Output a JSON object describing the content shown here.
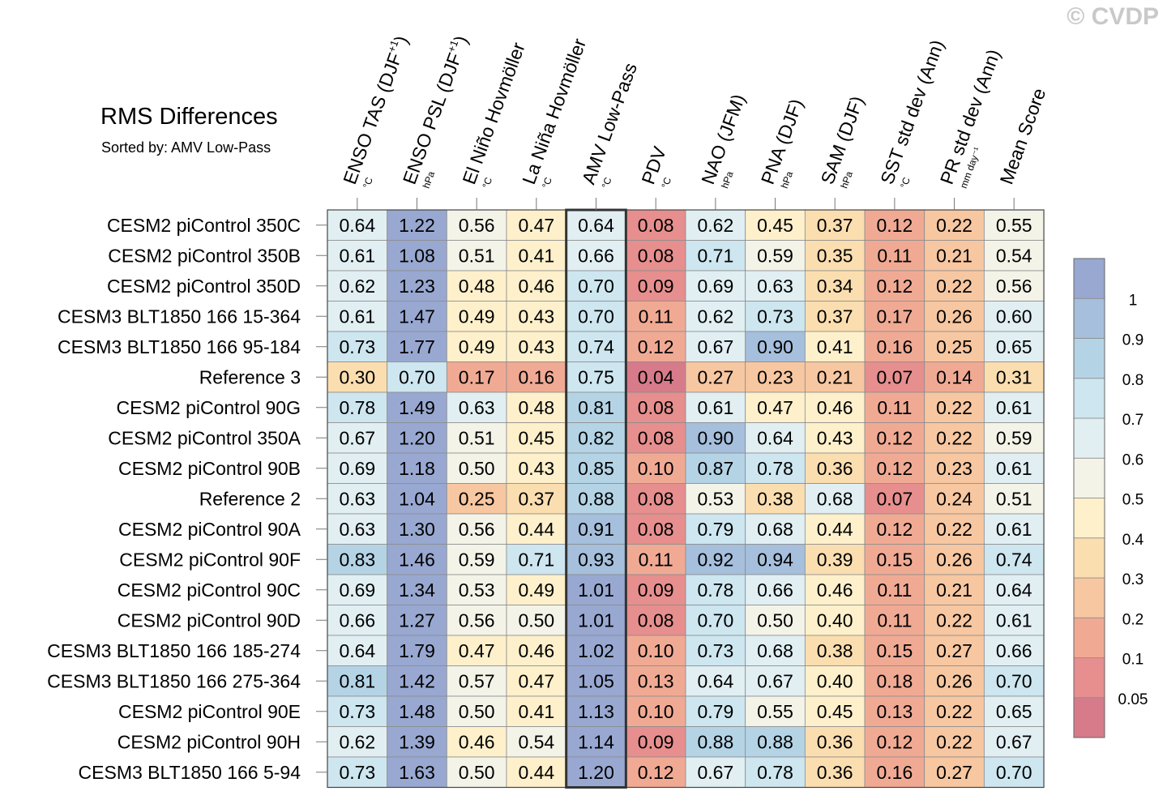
{
  "watermark": "© CVDP",
  "chart_data": {
    "type": "heatmap",
    "title": "RMS Differences",
    "subtitle": "Sorted by: AMV Low-Pass",
    "sorted_column": "AMV Low-Pass",
    "columns": [
      {
        "name": "ENSO TAS (DJF",
        "sup": "+1",
        "close": ")",
        "unit": "°C"
      },
      {
        "name": "ENSO PSL (DJF",
        "sup": "+1",
        "close": ")",
        "unit": "hPa"
      },
      {
        "name": "El Niño Hovmöller",
        "sup": "",
        "close": "",
        "unit": "°C"
      },
      {
        "name": "La Niña Hovmöller",
        "sup": "",
        "close": "",
        "unit": "°C"
      },
      {
        "name": "AMV Low-Pass",
        "sup": "",
        "close": "",
        "unit": "°C"
      },
      {
        "name": "PDV",
        "sup": "",
        "close": "",
        "unit": "°C"
      },
      {
        "name": "NAO (JFM)",
        "sup": "",
        "close": "",
        "unit": "hPa"
      },
      {
        "name": "PNA (DJF)",
        "sup": "",
        "close": "",
        "unit": "hPa"
      },
      {
        "name": "SAM (DJF)",
        "sup": "",
        "close": "",
        "unit": "hPa"
      },
      {
        "name": "SST std dev (Ann)",
        "sup": "",
        "close": "",
        "unit": "°C"
      },
      {
        "name": "PR std dev (Ann)",
        "sup": "",
        "close": "",
        "unit": "mm day⁻¹"
      },
      {
        "name": "Mean Score",
        "sup": "",
        "close": "",
        "unit": ""
      }
    ],
    "rows": [
      {
        "label": "CESM2 piControl 350C",
        "values": [
          0.64,
          1.22,
          0.56,
          0.47,
          0.64,
          0.08,
          0.62,
          0.45,
          0.37,
          0.12,
          0.22,
          0.55
        ]
      },
      {
        "label": "CESM2 piControl 350B",
        "values": [
          0.61,
          1.08,
          0.51,
          0.41,
          0.66,
          0.08,
          0.71,
          0.59,
          0.35,
          0.11,
          0.21,
          0.54
        ]
      },
      {
        "label": "CESM2 piControl 350D",
        "values": [
          0.62,
          1.23,
          0.48,
          0.46,
          0.7,
          0.09,
          0.69,
          0.63,
          0.34,
          0.12,
          0.22,
          0.56
        ]
      },
      {
        "label": "CESM3 BLT1850 166 15-364",
        "values": [
          0.61,
          1.47,
          0.49,
          0.43,
          0.7,
          0.11,
          0.62,
          0.73,
          0.37,
          0.17,
          0.26,
          0.6
        ]
      },
      {
        "label": "CESM3 BLT1850 166 95-184",
        "values": [
          0.73,
          1.77,
          0.49,
          0.43,
          0.74,
          0.12,
          0.67,
          0.9,
          0.41,
          0.16,
          0.25,
          0.65
        ]
      },
      {
        "label": "Reference 3",
        "values": [
          0.3,
          0.7,
          0.17,
          0.16,
          0.75,
          0.04,
          0.27,
          0.23,
          0.21,
          0.07,
          0.14,
          0.31
        ]
      },
      {
        "label": "CESM2 piControl 90G",
        "values": [
          0.78,
          1.49,
          0.63,
          0.48,
          0.81,
          0.08,
          0.61,
          0.47,
          0.46,
          0.11,
          0.22,
          0.61
        ]
      },
      {
        "label": "CESM2 piControl 350A",
        "values": [
          0.67,
          1.2,
          0.51,
          0.45,
          0.82,
          0.08,
          0.9,
          0.64,
          0.43,
          0.12,
          0.22,
          0.59
        ]
      },
      {
        "label": "CESM2 piControl 90B",
        "values": [
          0.69,
          1.18,
          0.5,
          0.43,
          0.85,
          0.1,
          0.87,
          0.78,
          0.36,
          0.12,
          0.23,
          0.61
        ]
      },
      {
        "label": "Reference 2",
        "values": [
          0.63,
          1.04,
          0.25,
          0.37,
          0.88,
          0.08,
          0.53,
          0.38,
          0.68,
          0.07,
          0.24,
          0.51
        ]
      },
      {
        "label": "CESM2 piControl 90A",
        "values": [
          0.63,
          1.3,
          0.56,
          0.44,
          0.91,
          0.08,
          0.79,
          0.68,
          0.44,
          0.12,
          0.22,
          0.61
        ]
      },
      {
        "label": "CESM2 piControl 90F",
        "values": [
          0.83,
          1.46,
          0.59,
          0.71,
          0.93,
          0.11,
          0.92,
          0.94,
          0.39,
          0.15,
          0.26,
          0.74
        ]
      },
      {
        "label": "CESM2 piControl 90C",
        "values": [
          0.69,
          1.34,
          0.53,
          0.49,
          1.01,
          0.09,
          0.78,
          0.66,
          0.46,
          0.11,
          0.21,
          0.64
        ]
      },
      {
        "label": "CESM2 piControl 90D",
        "values": [
          0.66,
          1.27,
          0.56,
          0.5,
          1.01,
          0.08,
          0.7,
          0.5,
          0.4,
          0.11,
          0.22,
          0.61
        ]
      },
      {
        "label": "CESM3 BLT1850 166 185-274",
        "values": [
          0.64,
          1.79,
          0.47,
          0.46,
          1.02,
          0.1,
          0.73,
          0.68,
          0.38,
          0.15,
          0.27,
          0.66
        ]
      },
      {
        "label": "CESM3 BLT1850 166 275-364",
        "values": [
          0.81,
          1.42,
          0.57,
          0.47,
          1.05,
          0.13,
          0.64,
          0.67,
          0.4,
          0.18,
          0.26,
          0.7
        ]
      },
      {
        "label": "CESM2 piControl 90E",
        "values": [
          0.73,
          1.48,
          0.5,
          0.41,
          1.13,
          0.1,
          0.79,
          0.55,
          0.45,
          0.13,
          0.22,
          0.65
        ]
      },
      {
        "label": "CESM2 piControl 90H",
        "values": [
          0.62,
          1.39,
          0.46,
          0.54,
          1.14,
          0.09,
          0.88,
          0.88,
          0.36,
          0.12,
          0.22,
          0.67
        ]
      },
      {
        "label": "CESM3 BLT1850 166 5-94",
        "values": [
          0.73,
          1.63,
          0.5,
          0.44,
          1.2,
          0.12,
          0.67,
          0.78,
          0.36,
          0.16,
          0.27,
          0.7
        ]
      }
    ],
    "colorbar": {
      "thresholds": [
        0.05,
        0.1,
        0.2,
        0.3,
        0.4,
        0.5,
        0.6,
        0.7,
        0.8,
        0.9,
        1
      ],
      "labels": [
        "0.05",
        "0.1",
        "0.2",
        "0.3",
        "0.4",
        "0.5",
        "0.6",
        "0.7",
        "0.8",
        "0.9",
        "1"
      ],
      "colors": [
        "#d77b8b",
        "#e68f8e",
        "#f0aa94",
        "#f7c7a1",
        "#fbdeb0",
        "#fdf0cb",
        "#f4f3e8",
        "#e1eff3",
        "#cde6f0",
        "#b4d4e6",
        "#a5bfdc",
        "#98a8d1"
      ]
    }
  }
}
